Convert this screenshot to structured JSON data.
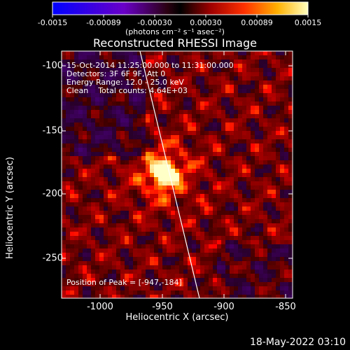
{
  "colorbar": {
    "ticks": [
      "-0.0015",
      "-0.00089",
      "-0.00030",
      "0.00030",
      "0.00089",
      "0.0015"
    ],
    "units": "(photons cm⁻² s⁻¹ asec⁻²)"
  },
  "title": "Reconstructed RHESSI Image",
  "info": {
    "time": "15-Oct-2014 11:25:00.000 to 11:31:00.000",
    "detectors": "Detectors: 3F 6F 9F, Att 0",
    "energy": "Energy Range: 12.0 - 25.0 keV",
    "clean": "Clean    Total counts: 4.64E+03"
  },
  "peak": {
    "label": "Position of Peak = [-947,-184]",
    "x": -947,
    "y": -184
  },
  "axes": {
    "xlabel": "Heliocentric X (arcsec)",
    "ylabel": "Heliocentric Y (arcsec)",
    "xticks": [
      "-1000",
      "-950",
      "-900",
      "-850"
    ],
    "yticks": [
      "-100",
      "-150",
      "-200",
      "-250"
    ],
    "xlim": [
      -1032,
      -843
    ],
    "ylim": [
      -282,
      -90
    ]
  },
  "timestamp": "18-May-2022 03:10",
  "colors": {
    "background": "#000000",
    "limb_line": "#ffffff"
  }
}
